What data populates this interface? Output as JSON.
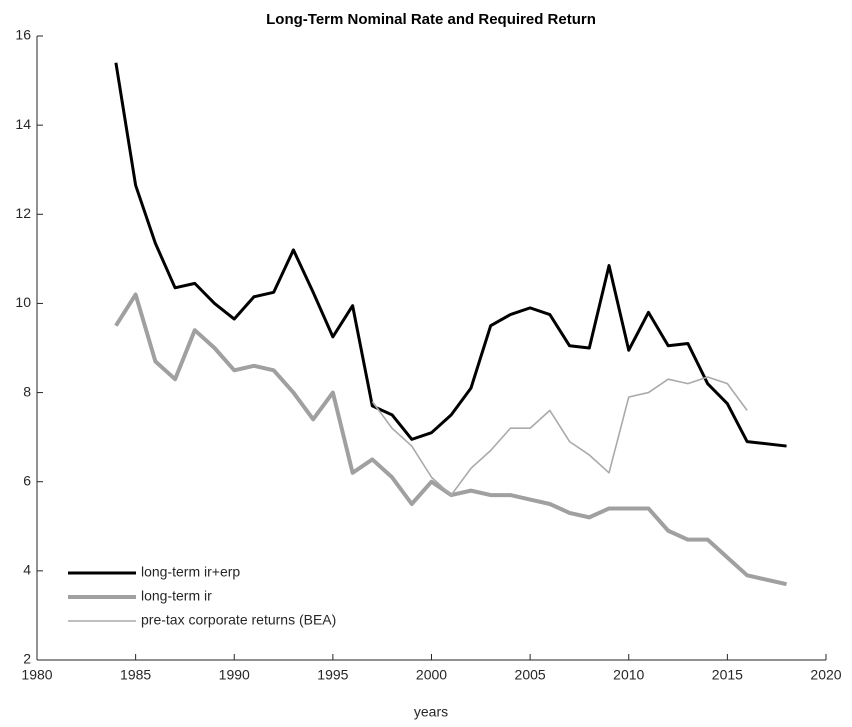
{
  "chart_data": {
    "type": "line",
    "title": "Long-Term Nominal Rate and Required Return",
    "xlabel": "years",
    "x": [
      1984,
      1985,
      1986,
      1987,
      1988,
      1989,
      1990,
      1991,
      1992,
      1993,
      1994,
      1995,
      1996,
      1997,
      1998,
      1999,
      2000,
      2001,
      2002,
      2003,
      2004,
      2005,
      2006,
      2007,
      2008,
      2009,
      2010,
      2011,
      2012,
      2013,
      2014,
      2015,
      2016,
      2018
    ],
    "series": [
      {
        "name": "long-term ir+erp",
        "color": "#000000",
        "width": 3,
        "values": [
          15.4,
          12.65,
          11.35,
          10.35,
          10.45,
          10.0,
          9.65,
          10.15,
          10.25,
          11.2,
          10.25,
          9.25,
          9.95,
          7.7,
          7.5,
          6.95,
          7.1,
          7.5,
          8.1,
          9.5,
          9.75,
          9.9,
          9.75,
          9.05,
          9.0,
          10.85,
          8.95,
          9.8,
          9.05,
          9.1,
          8.2,
          7.75,
          6.9,
          6.8
        ]
      },
      {
        "name": "long-term ir",
        "color": "#a0a0a0",
        "width": 4,
        "values": [
          9.5,
          10.2,
          8.7,
          8.3,
          9.4,
          9.0,
          8.5,
          8.6,
          8.5,
          8.0,
          7.4,
          8.0,
          6.2,
          6.5,
          6.1,
          5.5,
          6.0,
          5.7,
          5.8,
          5.7,
          5.7,
          5.6,
          5.5,
          5.3,
          5.2,
          5.4,
          5.4,
          5.4,
          4.9,
          4.7,
          4.7,
          4.3,
          3.9,
          3.7
        ]
      },
      {
        "name": "pre-tax corporate returns (BEA)",
        "color": "#aaaaaa",
        "width": 1.6,
        "values": [
          null,
          null,
          null,
          null,
          null,
          null,
          null,
          null,
          null,
          null,
          null,
          null,
          null,
          7.8,
          7.2,
          6.8,
          6.1,
          5.7,
          6.3,
          6.7,
          7.2,
          7.2,
          7.6,
          6.9,
          6.6,
          6.2,
          7.9,
          8.0,
          8.3,
          8.2,
          8.35,
          8.2,
          7.6,
          null
        ]
      }
    ],
    "xlim": [
      1980,
      2020
    ],
    "xticks": [
      1980,
      1985,
      1990,
      1995,
      2000,
      2005,
      2010,
      2015,
      2020
    ],
    "ylim": [
      2,
      16
    ],
    "yticks": [
      2,
      4,
      6,
      8,
      10,
      12,
      14,
      16
    ],
    "legend": "lower left"
  }
}
